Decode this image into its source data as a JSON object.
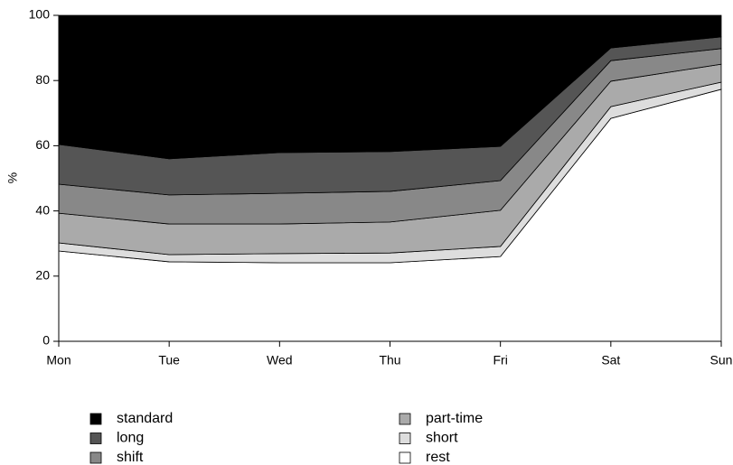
{
  "chart_data": {
    "type": "stacked_area",
    "y_label": "%",
    "categories": [
      "Mon",
      "Tue",
      "Wed",
      "Thu",
      "Fri",
      "Sat",
      "Sun"
    ],
    "series": [
      {
        "name": "standard",
        "color": "#000000",
        "values": [
          39.6,
          44.0,
          42.1,
          41.8,
          40.2,
          10.0,
          6.6
        ]
      },
      {
        "name": "long",
        "color": "#555555",
        "values": [
          12.2,
          11.1,
          12.5,
          12.2,
          10.5,
          3.9,
          3.6
        ]
      },
      {
        "name": "shift",
        "color": "#888888",
        "values": [
          8.9,
          8.9,
          9.4,
          9.4,
          9.1,
          6.3,
          4.8
        ]
      },
      {
        "name": "part-time",
        "color": "#aaaaaa",
        "values": [
          9.1,
          9.4,
          9.1,
          9.5,
          11.1,
          7.8,
          5.5
        ]
      },
      {
        "name": "short",
        "color": "#dddddd",
        "values": [
          2.5,
          2.2,
          2.8,
          3.0,
          3.1,
          3.6,
          2.2
        ]
      },
      {
        "name": "rest",
        "color": "#ffffff",
        "values": [
          27.7,
          24.4,
          24.1,
          24.1,
          26.0,
          68.4,
          77.3
        ]
      }
    ],
    "ylim": [
      0,
      100
    ],
    "yticks": [
      0,
      20,
      40,
      60,
      80,
      100
    ],
    "grid": false
  }
}
